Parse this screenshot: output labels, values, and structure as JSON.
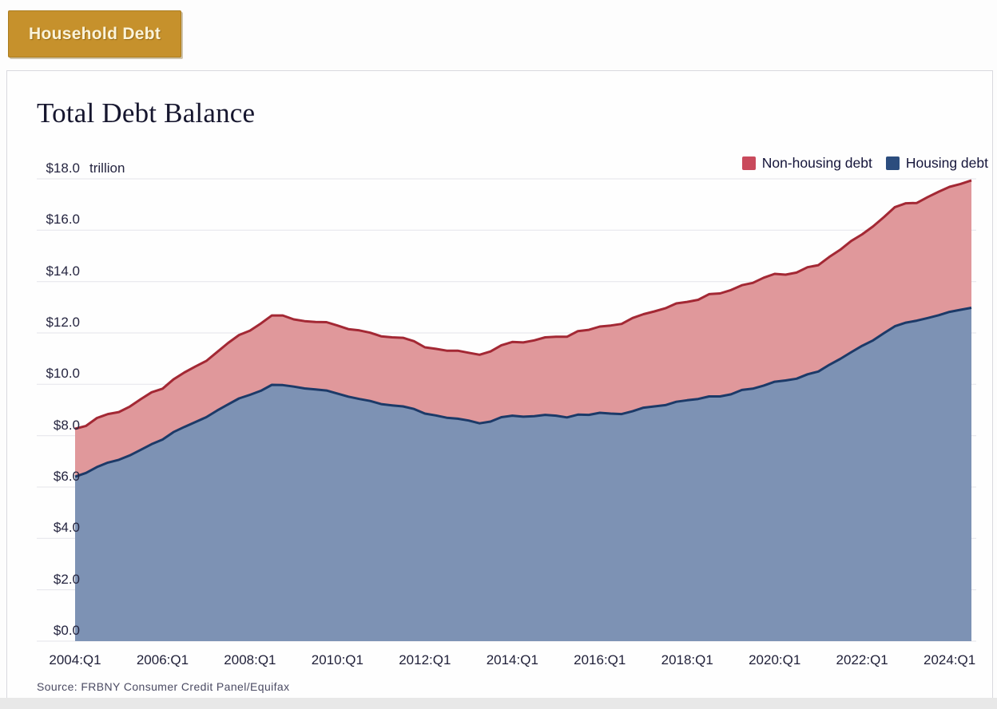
{
  "tab": {
    "label": "Household Debt"
  },
  "chart": {
    "title": "Total Debt Balance",
    "unit_label": "trillion",
    "source": "Source: FRBNY Consumer Credit Panel/Equifax",
    "legend": [
      {
        "label": "Non-housing debt",
        "color": "#c94a5c"
      },
      {
        "label": "Housing debt",
        "color": "#2c4d7e"
      }
    ]
  },
  "chart_data": {
    "type": "area",
    "stacked": true,
    "title": "Total Debt Balance",
    "unit": "trillion USD",
    "x_start": "2004:Q1",
    "x_end": "2024:Q3",
    "x_frequency": "quarterly",
    "x_tick_labels": [
      "2004:Q1",
      "2006:Q1",
      "2008:Q1",
      "2010:Q1",
      "2012:Q1",
      "2014:Q1",
      "2016:Q1",
      "2018:Q1",
      "2020:Q1",
      "2022:Q1",
      "2024:Q1"
    ],
    "y_tick_labels": [
      "$0.0",
      "$2.0",
      "$4.0",
      "$6.0",
      "$8.0",
      "$10.0",
      "$12.0",
      "$14.0",
      "$16.0",
      "$18.0"
    ],
    "y_ticks": [
      0,
      2,
      4,
      6,
      8,
      10,
      12,
      14,
      16,
      18
    ],
    "ylim": [
      0,
      18
    ],
    "grid": true,
    "legend_position": "top-right",
    "series": [
      {
        "name": "Housing debt",
        "fill": "#7d92b4",
        "stroke": "#1c3a68",
        "values": [
          6.4,
          6.55,
          6.78,
          6.95,
          7.06,
          7.23,
          7.45,
          7.67,
          7.85,
          8.14,
          8.34,
          8.53,
          8.72,
          8.98,
          9.22,
          9.45,
          9.59,
          9.75,
          9.98,
          9.97,
          9.91,
          9.84,
          9.8,
          9.76,
          9.64,
          9.52,
          9.43,
          9.35,
          9.23,
          9.18,
          9.14,
          9.04,
          8.86,
          8.79,
          8.7,
          8.66,
          8.59,
          8.48,
          8.55,
          8.72,
          8.78,
          8.74,
          8.76,
          8.81,
          8.78,
          8.71,
          8.82,
          8.81,
          8.89,
          8.86,
          8.84,
          8.95,
          9.09,
          9.14,
          9.19,
          9.32,
          9.38,
          9.43,
          9.53,
          9.53,
          9.61,
          9.78,
          9.83,
          9.95,
          10.1,
          10.15,
          10.22,
          10.39,
          10.5,
          10.76,
          10.99,
          11.25,
          11.5,
          11.71,
          11.99,
          12.26,
          12.4,
          12.48,
          12.58,
          12.69,
          12.82,
          12.9,
          12.98
        ]
      },
      {
        "name": "Non-housing debt",
        "fill": "#e0989b",
        "stroke": "#a32834",
        "values": [
          1.87,
          1.83,
          1.91,
          1.89,
          1.86,
          1.9,
          1.97,
          2.02,
          1.98,
          2.05,
          2.12,
          2.16,
          2.19,
          2.28,
          2.39,
          2.47,
          2.5,
          2.62,
          2.7,
          2.71,
          2.62,
          2.62,
          2.63,
          2.66,
          2.65,
          2.63,
          2.67,
          2.66,
          2.64,
          2.65,
          2.67,
          2.64,
          2.58,
          2.59,
          2.61,
          2.65,
          2.64,
          2.67,
          2.73,
          2.8,
          2.87,
          2.89,
          2.95,
          3.02,
          3.07,
          3.14,
          3.25,
          3.31,
          3.36,
          3.43,
          3.51,
          3.63,
          3.64,
          3.7,
          3.77,
          3.83,
          3.83,
          3.86,
          3.98,
          4.01,
          4.06,
          4.08,
          4.12,
          4.2,
          4.2,
          4.12,
          4.13,
          4.17,
          4.14,
          4.2,
          4.25,
          4.33,
          4.34,
          4.44,
          4.52,
          4.64,
          4.65,
          4.58,
          4.71,
          4.81,
          4.87,
          4.9,
          4.96
        ]
      }
    ]
  }
}
